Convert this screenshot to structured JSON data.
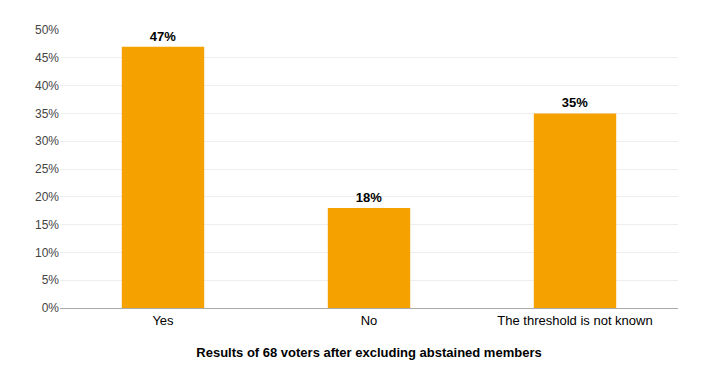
{
  "chart_data": {
    "type": "bar",
    "categories": [
      "Yes",
      "No",
      "The threshold is not known"
    ],
    "values": [
      47,
      18,
      35
    ],
    "value_labels": [
      "47%",
      "18%",
      "35%"
    ],
    "data_labels": true,
    "color": "#F5A200",
    "xlabel": "Results of 68 voters after excluding abstained members",
    "ylim": [
      0,
      50
    ],
    "yticks": [
      {
        "value": 0,
        "label": "0%"
      },
      {
        "value": 5,
        "label": "5%"
      },
      {
        "value": 10,
        "label": "10%"
      },
      {
        "value": 15,
        "label": "15%"
      },
      {
        "value": 20,
        "label": "20%"
      },
      {
        "value": 25,
        "label": "25%"
      },
      {
        "value": 30,
        "label": "30%"
      },
      {
        "value": 35,
        "label": "35%"
      },
      {
        "value": 40,
        "label": "40%"
      },
      {
        "value": 45,
        "label": "45%"
      },
      {
        "value": 50,
        "label": "50%"
      }
    ],
    "grid": true
  }
}
